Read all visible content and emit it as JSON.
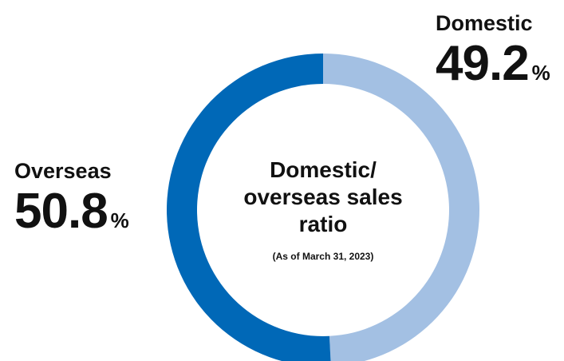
{
  "chart_data": {
    "type": "pie",
    "donut": true,
    "title": "Domestic/ overseas sales ratio",
    "subtitle": "(As of March 31, 2023)",
    "unit": "%",
    "slices": [
      {
        "label": "Domestic",
        "value": 49.2,
        "value_text": "49.2",
        "color": "#a3c0e3"
      },
      {
        "label": "Overseas",
        "value": 50.8,
        "value_text": "50.8",
        "color": "#0068b7"
      }
    ]
  }
}
